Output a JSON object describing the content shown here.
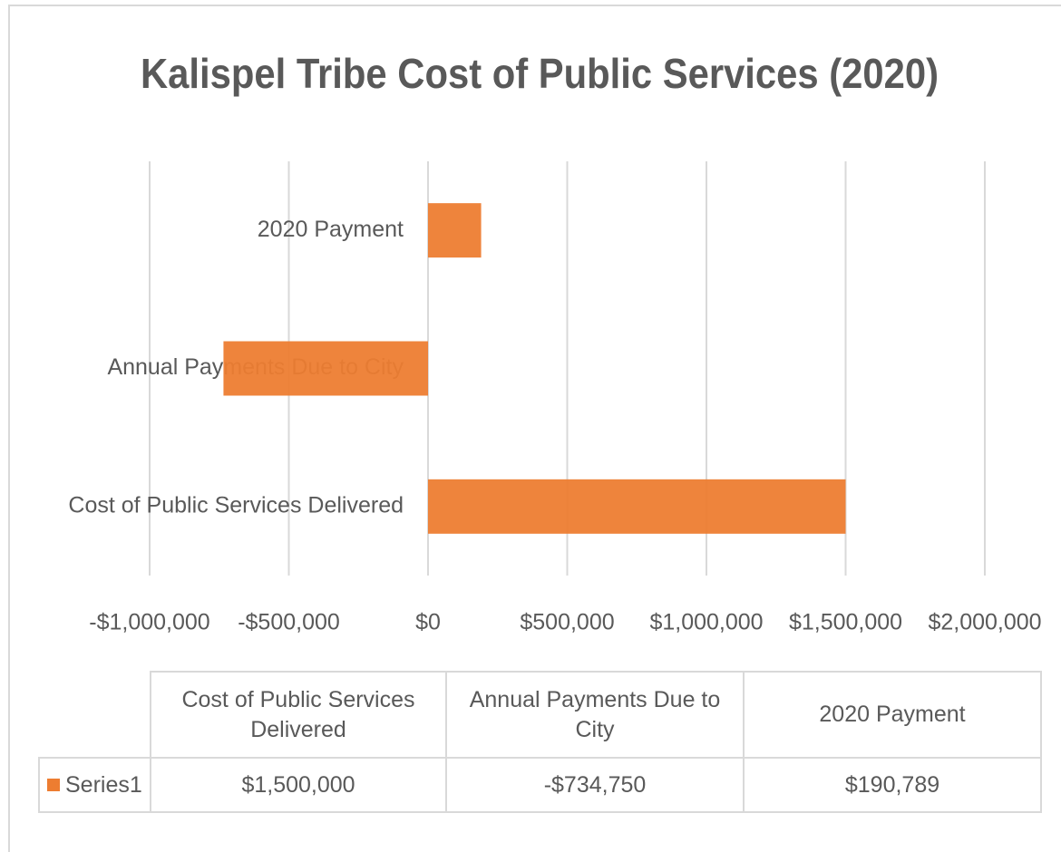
{
  "chart_data": {
    "type": "hbar",
    "title": "Kalispel Tribe Cost of Public Services (2020)",
    "categories": [
      "Cost of Public Services Delivered",
      "Annual Payments Due to City",
      "2020 Payment"
    ],
    "series": [
      {
        "name": "Series1",
        "color": "#ed7d31",
        "values": [
          1500000,
          -734750,
          190789
        ],
        "value_labels": [
          "$1,500,000",
          "-$734,750",
          "$190,789"
        ]
      }
    ],
    "xlim": [
      -1000000,
      2000000
    ],
    "xticks": [
      {
        "value": -1000000,
        "label": "-$1,000,000"
      },
      {
        "value": -500000,
        "label": "-$500,000"
      },
      {
        "value": 0,
        "label": "$0"
      },
      {
        "value": 500000,
        "label": "$500,000"
      },
      {
        "value": 1000000,
        "label": "$1,000,000"
      },
      {
        "value": 1500000,
        "label": "$1,500,000"
      },
      {
        "value": 2000000,
        "label": "$2,000,000"
      }
    ],
    "grid": true
  }
}
